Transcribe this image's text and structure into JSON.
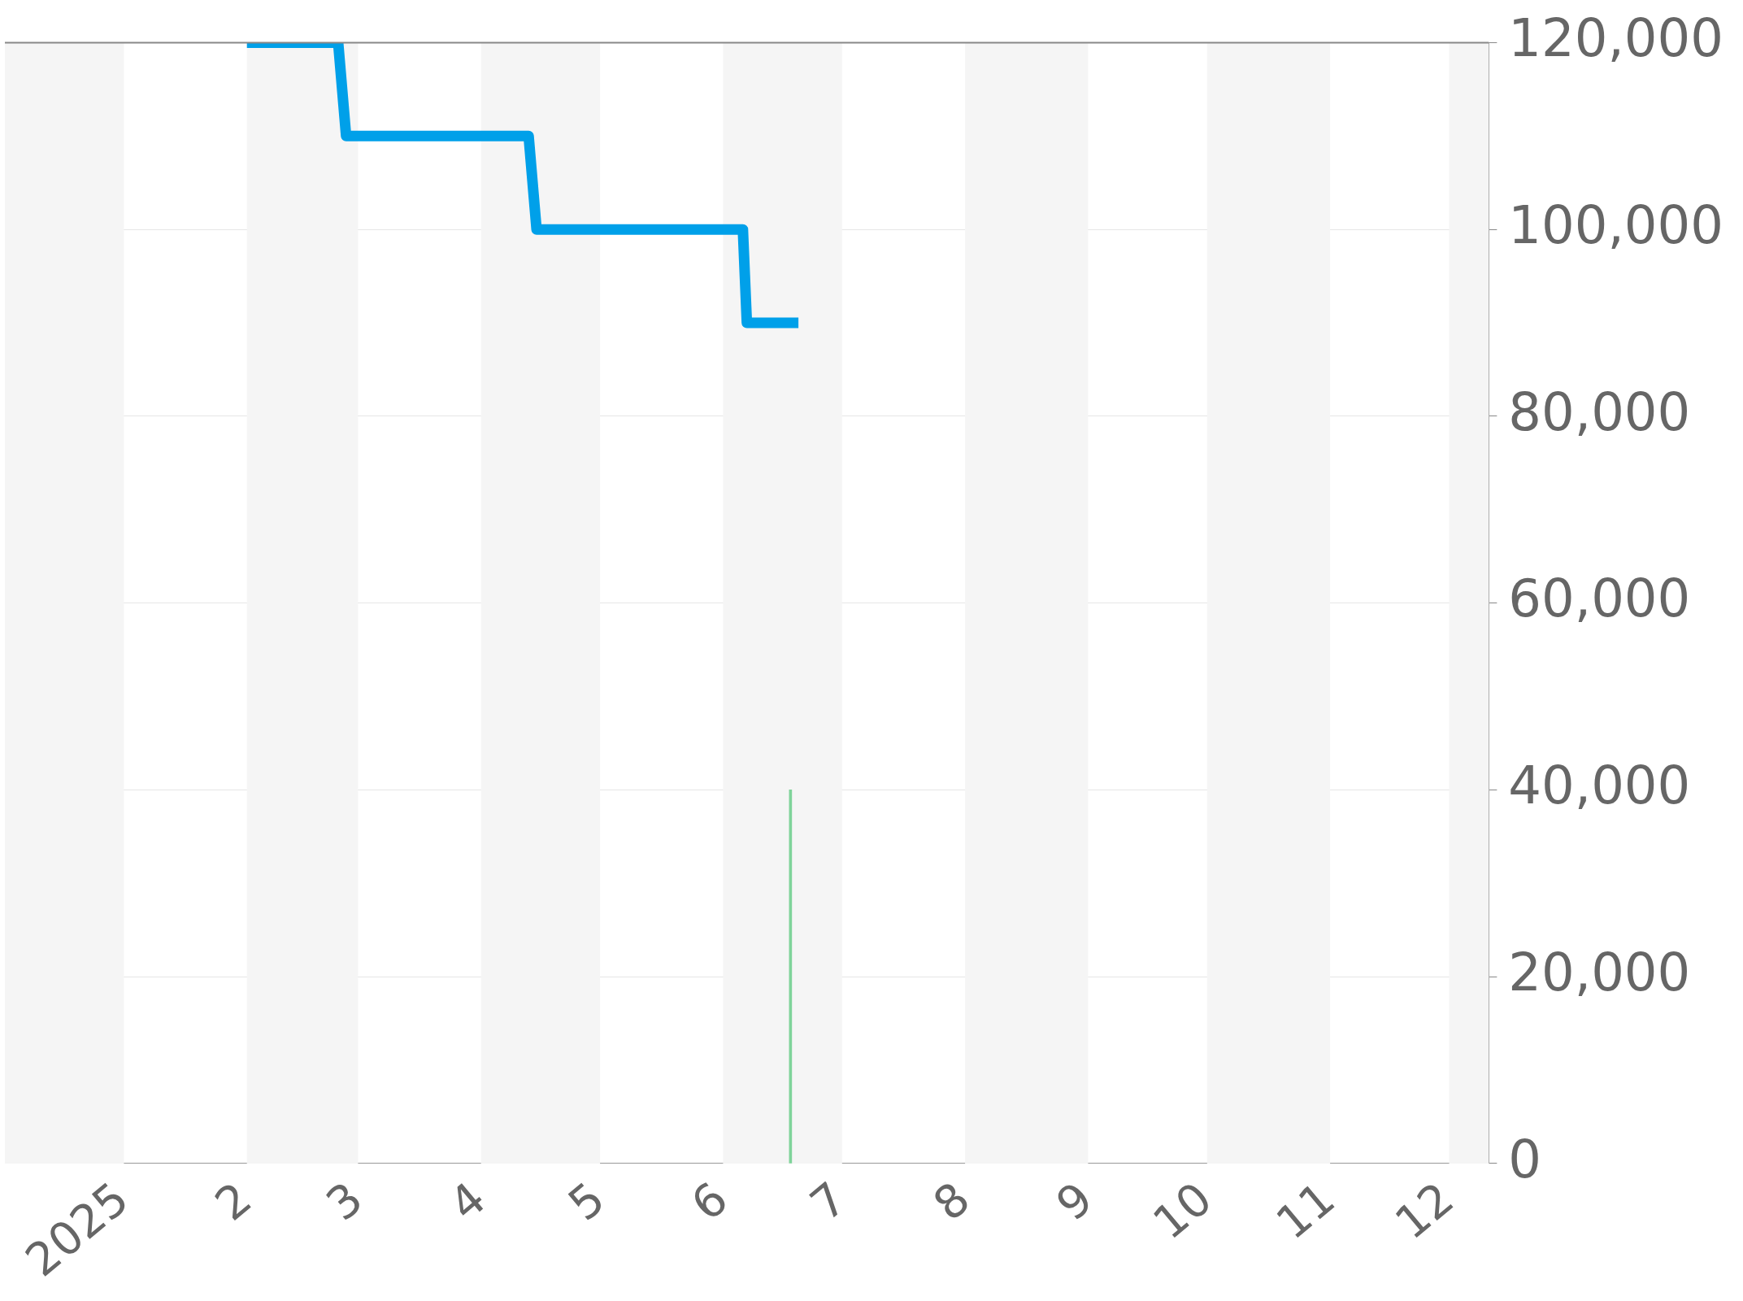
{
  "chart_data": {
    "type": "line",
    "xlim": [
      "2024-12-02",
      "2025-12-11"
    ],
    "xticks": [
      {
        "value": "2025-01-01",
        "label": "2025"
      },
      {
        "value": "2025-02-01",
        "label": "2"
      },
      {
        "value": "2025-03-01",
        "label": "3"
      },
      {
        "value": "2025-04-01",
        "label": "4"
      },
      {
        "value": "2025-05-01",
        "label": "5"
      },
      {
        "value": "2025-06-01",
        "label": "6"
      },
      {
        "value": "2025-07-01",
        "label": "7"
      },
      {
        "value": "2025-08-01",
        "label": "8"
      },
      {
        "value": "2025-09-01",
        "label": "9"
      },
      {
        "value": "2025-10-01",
        "label": "10"
      },
      {
        "value": "2025-11-01",
        "label": "11"
      },
      {
        "value": "2025-12-01",
        "label": "12"
      }
    ],
    "ylim": [
      0,
      120000
    ],
    "yticks": [
      0,
      {
        "value": 20000,
        "label": "20,000"
      },
      {
        "value": 40000,
        "label": "40,000"
      },
      {
        "value": 60000,
        "label": "60,000"
      },
      {
        "value": 80000,
        "label": "80,000"
      },
      {
        "value": 100000,
        "label": "100,000"
      },
      {
        "value": 120000,
        "label": "120,000"
      }
    ],
    "grid": "y",
    "legend": false,
    "marker": "none",
    "line_style": "solid",
    "series": [
      {
        "color": "#00a0e9",
        "x": [
          "2025-02-01",
          "2025-02-24",
          "2025-02-26",
          "2025-04-13",
          "2025-04-15",
          "2025-06-06",
          "2025-06-07",
          "2025-06-20"
        ],
        "values": [
          120000,
          120000,
          110000,
          110000,
          100000,
          100000,
          90000,
          90000
        ]
      },
      {
        "type": "bar",
        "color": "#7fd39a",
        "x": [
          "2025-06-18"
        ],
        "values": [
          40000
        ]
      }
    ],
    "bands": [
      {
        "axis": "x",
        "from": "2024-12-02",
        "to": "2025-01-01",
        "color": "#f5f5f5"
      },
      {
        "axis": "x",
        "from": "2025-02-01",
        "to": "2025-03-01",
        "color": "#f5f5f5"
      },
      {
        "axis": "x",
        "from": "2025-04-01",
        "to": "2025-05-01",
        "color": "#f5f5f5"
      },
      {
        "axis": "x",
        "from": "2025-06-01",
        "to": "2025-07-01",
        "color": "#f5f5f5"
      },
      {
        "axis": "x",
        "from": "2025-08-01",
        "to": "2025-09-01",
        "color": "#f5f5f5"
      },
      {
        "axis": "x",
        "from": "2025-10-01",
        "to": "2025-11-01",
        "color": "#f5f5f5"
      },
      {
        "axis": "x",
        "from": "2025-12-01",
        "to": "2025-12-11",
        "color": "#f5f5f5"
      }
    ]
  }
}
